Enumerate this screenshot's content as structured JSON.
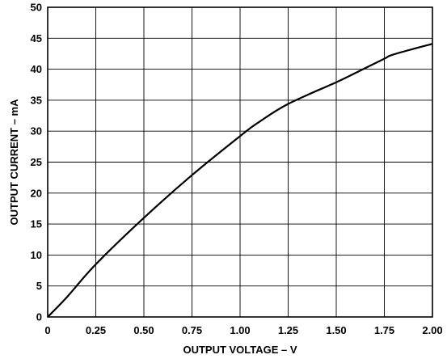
{
  "chart_data": {
    "type": "line",
    "xlabel": "OUTPUT VOLTAGE – V",
    "ylabel": "OUTPUT CURRENT – mA",
    "xlim": [
      0,
      2.0
    ],
    "ylim": [
      0,
      50
    ],
    "x_ticks": [
      "0",
      "0.25",
      "0.50",
      "0.75",
      "1.00",
      "1.25",
      "1.50",
      "1.75",
      "2.00"
    ],
    "y_ticks": [
      "0",
      "5",
      "10",
      "15",
      "20",
      "25",
      "30",
      "35",
      "40",
      "45",
      "50"
    ],
    "grid": true,
    "series": [
      {
        "x": [
          0,
          0.1,
          0.25,
          0.5,
          0.75,
          1.0,
          1.1,
          1.25,
          1.5,
          1.6,
          1.75,
          1.8,
          2.0
        ],
        "y": [
          0,
          3.2,
          8.5,
          16,
          22.9,
          29.2,
          31.5,
          34.4,
          37.9,
          39.4,
          41.7,
          42.4,
          44.1
        ]
      }
    ]
  }
}
